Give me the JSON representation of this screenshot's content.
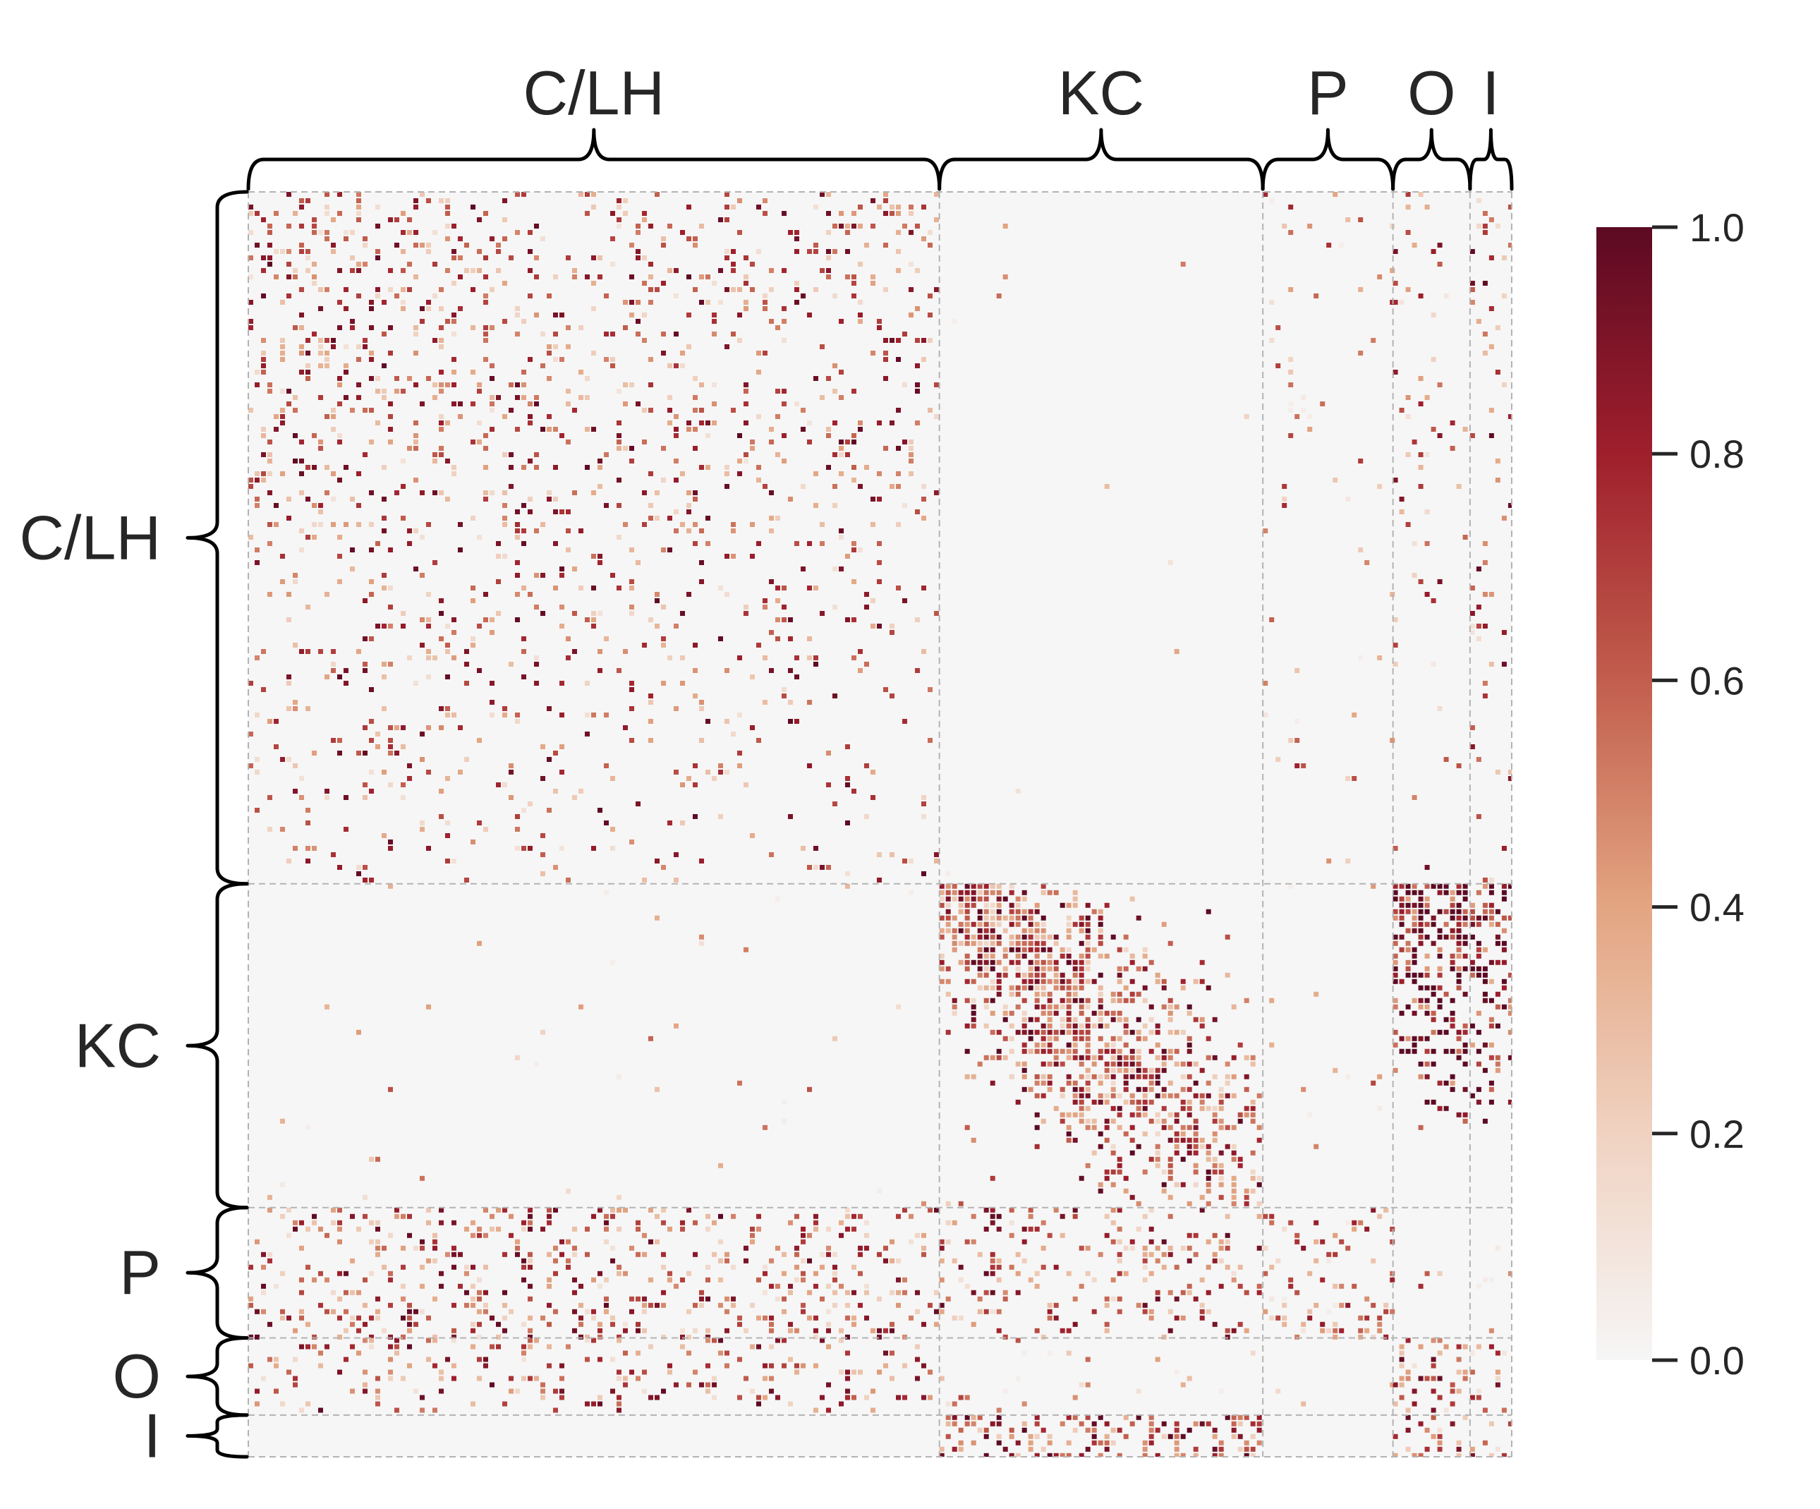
{
  "chart_data": {
    "type": "heatmap",
    "title": "",
    "xlabel": "",
    "ylabel": "",
    "groups": [
      {
        "label": "C/LH",
        "fraction": 0.547
      },
      {
        "label": "KC",
        "fraction": 0.256
      },
      {
        "label": "P",
        "fraction": 0.103
      },
      {
        "label": "O",
        "fraction": 0.061
      },
      {
        "label": "I",
        "fraction": 0.033
      }
    ],
    "blocks": [
      {
        "row": "C/LH",
        "col": "C/LH",
        "density": 0.13,
        "mean": 0.55
      },
      {
        "row": "C/LH",
        "col": "KC",
        "density": 0.004,
        "mean": 0.3
      },
      {
        "row": "C/LH",
        "col": "P",
        "density": 0.02,
        "mean": 0.35
      },
      {
        "row": "C/LH",
        "col": "O",
        "density": 0.05,
        "mean": 0.5
      },
      {
        "row": "C/LH",
        "col": "I",
        "density": 0.08,
        "mean": 0.55
      },
      {
        "row": "KC",
        "col": "C/LH",
        "density": 0.01,
        "mean": 0.25
      },
      {
        "row": "KC",
        "col": "KC",
        "density": 0.42,
        "mean": 0.6
      },
      {
        "row": "KC",
        "col": "P",
        "density": 0.01,
        "mean": 0.25
      },
      {
        "row": "KC",
        "col": "O",
        "density": 0.75,
        "mean": 0.85
      },
      {
        "row": "KC",
        "col": "I",
        "density": 0.55,
        "mean": 0.8
      },
      {
        "row": "P",
        "col": "C/LH",
        "density": 0.2,
        "mean": 0.55
      },
      {
        "row": "P",
        "col": "KC",
        "density": 0.18,
        "mean": 0.55
      },
      {
        "row": "P",
        "col": "P",
        "density": 0.2,
        "mean": 0.45
      },
      {
        "row": "P",
        "col": "O",
        "density": 0.02,
        "mean": 0.4
      },
      {
        "row": "P",
        "col": "I",
        "density": 0.02,
        "mean": 0.4
      },
      {
        "row": "O",
        "col": "C/LH",
        "density": 0.15,
        "mean": 0.55
      },
      {
        "row": "O",
        "col": "KC",
        "density": 0.03,
        "mean": 0.25
      },
      {
        "row": "O",
        "col": "P",
        "density": 0.01,
        "mean": 0.3
      },
      {
        "row": "O",
        "col": "O",
        "density": 0.25,
        "mean": 0.55
      },
      {
        "row": "O",
        "col": "I",
        "density": 0.15,
        "mean": 0.5
      },
      {
        "row": "I",
        "col": "C/LH",
        "density": 0.0,
        "mean": 0.0
      },
      {
        "row": "I",
        "col": "KC",
        "density": 0.35,
        "mean": 0.65
      },
      {
        "row": "I",
        "col": "P",
        "density": 0.0,
        "mean": 0.0
      },
      {
        "row": "I",
        "col": "O",
        "density": 0.2,
        "mean": 0.55
      },
      {
        "row": "I",
        "col": "I",
        "density": 0.15,
        "mean": 0.5
      }
    ],
    "colorbar": {
      "min": 0.0,
      "max": 1.0,
      "ticks": [
        "0.0",
        "0.2",
        "0.4",
        "0.6",
        "0.8",
        "1.0"
      ],
      "colormap": "light-gray to peach to dark red",
      "colors": [
        "#f6f6f6",
        "#f0d2c1",
        "#e3a582",
        "#c25e4d",
        "#9f1f2c",
        "#5c0a23"
      ]
    },
    "divider_lines": "dashed gray",
    "legend_placement": "right"
  }
}
